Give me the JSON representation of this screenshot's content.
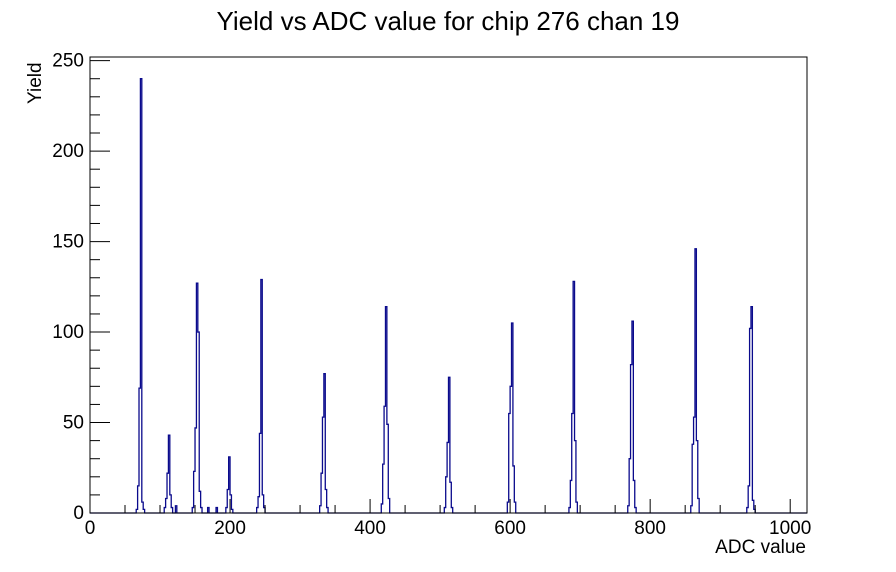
{
  "title": "Yield vs ADC value for chip 276 chan 19",
  "chart_data": {
    "type": "bar",
    "title": "Yield vs ADC value for chip 276 chan 19",
    "xlabel": "ADC value",
    "ylabel": "Yield",
    "xlim": [
      0,
      1024
    ],
    "ylim": [
      0,
      252
    ],
    "grid": false,
    "legend": false,
    "x_major_ticks": [
      0,
      200,
      400,
      600,
      800,
      1000
    ],
    "x_minor_step": 50,
    "y_major_ticks": [
      0,
      50,
      100,
      150,
      200,
      250
    ],
    "y_minor_step": 10,
    "line_color": "#0a0a8c",
    "axis_color": "#000000",
    "bin_width": 2,
    "clusters": [
      {
        "start": 66,
        "values": [
          2,
          15,
          69,
          240,
          6,
          2
        ]
      },
      {
        "start": 106,
        "values": [
          3,
          8,
          22,
          43,
          10,
          3
        ]
      },
      {
        "start": 122,
        "values": [
          4
        ]
      },
      {
        "start": 146,
        "values": [
          3,
          23,
          47,
          127,
          100,
          12,
          3
        ]
      },
      {
        "start": 168,
        "values": [
          3
        ]
      },
      {
        "start": 180,
        "values": [
          3
        ]
      },
      {
        "start": 194,
        "values": [
          3,
          13,
          31,
          10,
          2
        ]
      },
      {
        "start": 238,
        "values": [
          3,
          9,
          44,
          129,
          10,
          3
        ]
      },
      {
        "start": 328,
        "values": [
          4,
          22,
          53,
          77,
          13,
          3
        ]
      },
      {
        "start": 416,
        "values": [
          5,
          27,
          59,
          114,
          49,
          8
        ]
      },
      {
        "start": 506,
        "values": [
          3,
          20,
          39,
          75,
          17,
          3
        ]
      },
      {
        "start": 596,
        "values": [
          6,
          55,
          70,
          105,
          26,
          6
        ]
      },
      {
        "start": 684,
        "values": [
          3,
          18,
          55,
          128,
          40,
          6
        ]
      },
      {
        "start": 768,
        "values": [
          4,
          30,
          82,
          106,
          18,
          3
        ]
      },
      {
        "start": 858,
        "values": [
          4,
          38,
          53,
          146,
          40,
          8
        ]
      },
      {
        "start": 938,
        "values": [
          3,
          15,
          102,
          114,
          7,
          2
        ]
      }
    ]
  }
}
